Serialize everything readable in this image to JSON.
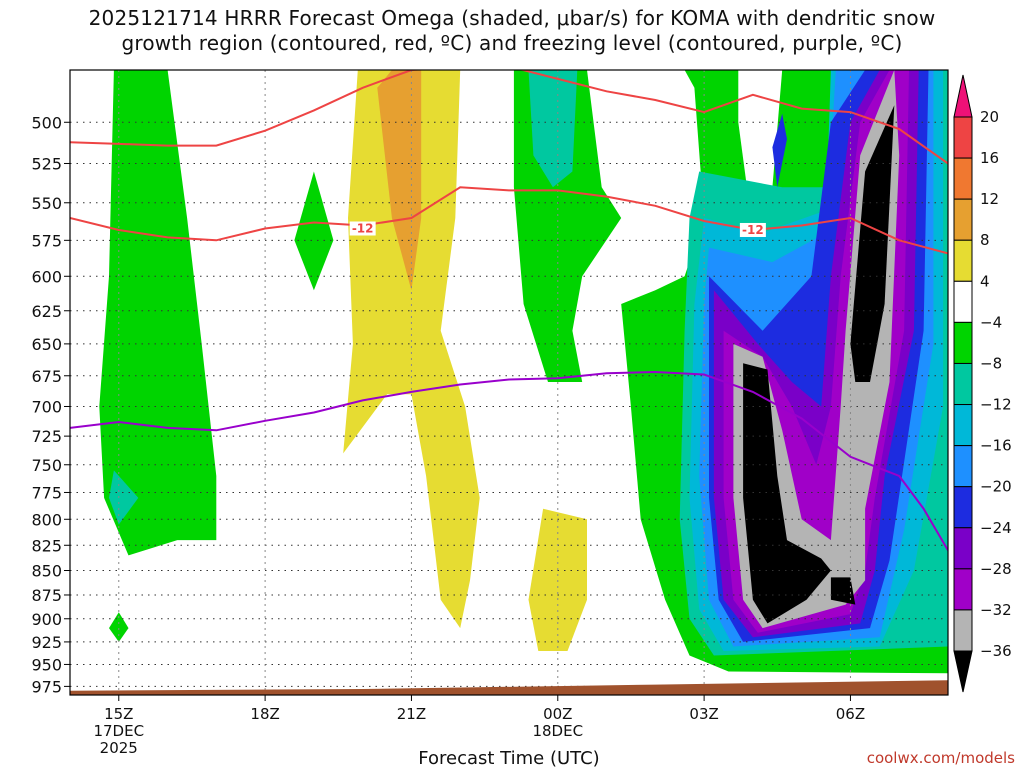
{
  "header": {
    "title_line1": "2025121714 HRRR Forecast Omega (shaded, μbar/s) for KOMA with dendritic snow",
    "title_line2": "growth region (contoured, red, ºC) and freezing level (contoured, purple, ºC)"
  },
  "footer": {
    "xlabel": "Forecast Time (UTC)",
    "credit": "coolwx.com/models"
  },
  "colors": {
    "green": "#00d400",
    "teal": "#00c8a0",
    "cyan": "#00b8d8",
    "blue": "#1e90ff",
    "navy": "#1d2ce0",
    "purple": "#7a00c8",
    "violet": "#a000c8",
    "gray": "#b4b4b4",
    "black": "#000000",
    "yellow": "#e6dc32",
    "orange": "#e6a030",
    "freezing_line": "#9900cc",
    "dgz_line": "#ee4444",
    "ground": "#a0522d"
  },
  "chart_data": {
    "type": "heatmap",
    "x_ticks": [
      {
        "hour": 15,
        "label": "15Z",
        "sub1": "17DEC",
        "sub2": "2025"
      },
      {
        "hour": 18,
        "label": "18Z",
        "sub1": "",
        "sub2": ""
      },
      {
        "hour": 21,
        "label": "21Z",
        "sub1": "",
        "sub2": ""
      },
      {
        "hour": 24,
        "label": "00Z",
        "sub1": "18DEC",
        "sub2": ""
      },
      {
        "hour": 27,
        "label": "03Z",
        "sub1": "",
        "sub2": ""
      },
      {
        "hour": 30,
        "label": "06Z",
        "sub1": "",
        "sub2": ""
      }
    ],
    "x_range_hours": [
      14,
      32
    ],
    "y_ticks": [
      500,
      525,
      550,
      575,
      600,
      625,
      650,
      675,
      700,
      725,
      750,
      775,
      800,
      825,
      850,
      875,
      900,
      925,
      950,
      975
    ],
    "y_range_mb": [
      470,
      985
    ],
    "y_scale": "log",
    "colorbar": {
      "labels": [
        20,
        16,
        12,
        8,
        4,
        -4,
        -8,
        -12,
        -16,
        -20,
        -24,
        -28,
        -32,
        -36
      ],
      "segments": [
        {
          "color": "#ee4444"
        },
        {
          "color": "#f07830"
        },
        {
          "color": "#e6a030"
        },
        {
          "color": "#e6dc32"
        },
        {
          "color": "#ffffff"
        },
        {
          "color": "#00d400"
        },
        {
          "color": "#00c8a0"
        },
        {
          "color": "#00b8d8"
        },
        {
          "color": "#1e90ff"
        },
        {
          "color": "#1d2ce0"
        },
        {
          "color": "#7a00c8"
        },
        {
          "color": "#a000c8"
        },
        {
          "color": "#b4b4b4"
        }
      ],
      "top_arrow_color": "#ee1177",
      "bottom_arrow_color": "#000000"
    },
    "contour_labels": [
      {
        "text": "-12",
        "hour": 20.0,
        "mb": 567
      },
      {
        "text": "-12",
        "hour": 28.0,
        "mb": 568
      }
    ],
    "dgz_top_line": [
      [
        14,
        512
      ],
      [
        15,
        513
      ],
      [
        16,
        514
      ],
      [
        17,
        514
      ],
      [
        18,
        505
      ],
      [
        19,
        493
      ],
      [
        20,
        480
      ],
      [
        21,
        470
      ],
      [
        22,
        468
      ],
      [
        23,
        468
      ],
      [
        24,
        475
      ],
      [
        25,
        482
      ],
      [
        26,
        487
      ],
      [
        27,
        494
      ],
      [
        28,
        484
      ],
      [
        29,
        492
      ],
      [
        30,
        494
      ],
      [
        31,
        504
      ],
      [
        32,
        525
      ]
    ],
    "dgz_bottom_line": [
      [
        14,
        560
      ],
      [
        15,
        568
      ],
      [
        16,
        573
      ],
      [
        17,
        575
      ],
      [
        18,
        567
      ],
      [
        19,
        563
      ],
      [
        20,
        565
      ],
      [
        21,
        560
      ],
      [
        22,
        540
      ],
      [
        23,
        542
      ],
      [
        24,
        542
      ],
      [
        25,
        546
      ],
      [
        26,
        552
      ],
      [
        27,
        562
      ],
      [
        28,
        568
      ],
      [
        29,
        565
      ],
      [
        30,
        560
      ],
      [
        31,
        575
      ],
      [
        32,
        584
      ]
    ],
    "freezing_line": [
      [
        14,
        718
      ],
      [
        15,
        713
      ],
      [
        16,
        718
      ],
      [
        17,
        720
      ],
      [
        18,
        712
      ],
      [
        19,
        705
      ],
      [
        20,
        695
      ],
      [
        21,
        688
      ],
      [
        22,
        682
      ],
      [
        23,
        678
      ],
      [
        24,
        677
      ],
      [
        25,
        673
      ],
      [
        26,
        672
      ],
      [
        27,
        674
      ],
      [
        28,
        688
      ],
      [
        29,
        710
      ],
      [
        30,
        743
      ],
      [
        31,
        760
      ],
      [
        31.5,
        790
      ],
      [
        32,
        830
      ]
    ],
    "ground_top": [
      [
        14,
        980
      ],
      [
        20,
        978
      ],
      [
        26,
        973
      ],
      [
        32,
        968
      ]
    ]
  }
}
